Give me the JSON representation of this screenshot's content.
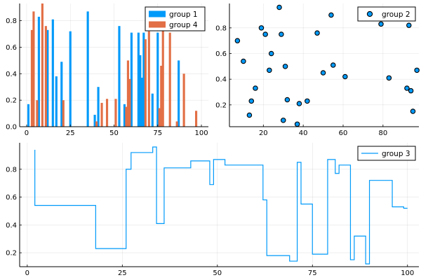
{
  "chart_data": [
    {
      "id": "panel1",
      "type": "bar",
      "title": "",
      "xlabel": "",
      "ylabel": "",
      "xlim": [
        -4,
        104
      ],
      "ylim": [
        0,
        0.93
      ],
      "xticks": [
        0,
        25,
        50,
        75,
        100
      ],
      "yticks": [
        0.0,
        0.2,
        0.4,
        0.6,
        0.8
      ],
      "ytick_labels": [
        "0.0",
        "0.2",
        "0.4",
        "0.6",
        "0.8"
      ],
      "grid": true,
      "legend_placement": "top-right",
      "series": [
        {
          "name": "group 1",
          "color": "#009AFA",
          "points": [
            {
              "x": 1,
              "y": 0.17
            },
            {
              "x": 7,
              "y": 0.83
            },
            {
              "x": 12,
              "y": 0.73
            },
            {
              "x": 15,
              "y": 0.81
            },
            {
              "x": 17,
              "y": 0.38
            },
            {
              "x": 20,
              "y": 0.49
            },
            {
              "x": 25,
              "y": 0.72
            },
            {
              "x": 35,
              "y": 0.87
            },
            {
              "x": 39,
              "y": 0.09
            },
            {
              "x": 41,
              "y": 0.3
            },
            {
              "x": 53,
              "y": 0.76
            },
            {
              "x": 56,
              "y": 0.17
            },
            {
              "x": 60,
              "y": 0.71
            },
            {
              "x": 64,
              "y": 0.71
            },
            {
              "x": 65,
              "y": 0.54
            },
            {
              "x": 66,
              "y": 0.37
            },
            {
              "x": 67,
              "y": 0.71
            },
            {
              "x": 72,
              "y": 0.25
            },
            {
              "x": 75,
              "y": 0.71
            },
            {
              "x": 87,
              "y": 0.5
            }
          ]
        },
        {
          "name": "group 4",
          "color": "#E26F46",
          "points": [
            {
              "x": 3,
              "y": 0.73
            },
            {
              "x": 4,
              "y": 0.87
            },
            {
              "x": 6,
              "y": 0.2
            },
            {
              "x": 9,
              "y": 0.93
            },
            {
              "x": 11,
              "y": 0.76
            },
            {
              "x": 21,
              "y": 0.2
            },
            {
              "x": 40,
              "y": 0.04
            },
            {
              "x": 43,
              "y": 0.18
            },
            {
              "x": 46,
              "y": 0.21
            },
            {
              "x": 51,
              "y": 0.21
            },
            {
              "x": 57,
              "y": 0.15
            },
            {
              "x": 58,
              "y": 0.5
            },
            {
              "x": 59,
              "y": 0.36
            },
            {
              "x": 68,
              "y": 0.66
            },
            {
              "x": 70,
              "y": 0.72
            },
            {
              "x": 76,
              "y": 0.14
            },
            {
              "x": 77,
              "y": 0.46
            },
            {
              "x": 78,
              "y": 0.75
            },
            {
              "x": 82,
              "y": 0.71
            },
            {
              "x": 86,
              "y": 0.04
            },
            {
              "x": 90,
              "y": 0.4
            },
            {
              "x": 97,
              "y": 0.12
            }
          ]
        }
      ]
    },
    {
      "id": "panel2",
      "type": "scatter",
      "title": "",
      "xlabel": "",
      "ylabel": "",
      "xlim": [
        3,
        98
      ],
      "ylim": [
        0.03,
        0.99
      ],
      "xticks": [
        20,
        40,
        60,
        80
      ],
      "yticks": [
        0.2,
        0.4,
        0.6,
        0.8
      ],
      "ytick_labels": [
        "0.2",
        "0.4",
        "0.6",
        "0.8"
      ],
      "grid": true,
      "legend_placement": "top-right",
      "series": [
        {
          "name": "group 2",
          "color": "#009AFA",
          "points": [
            {
              "x": 7,
              "y": 0.7
            },
            {
              "x": 10,
              "y": 0.54
            },
            {
              "x": 13,
              "y": 0.12
            },
            {
              "x": 14,
              "y": 0.23
            },
            {
              "x": 16,
              "y": 0.33
            },
            {
              "x": 19,
              "y": 0.8
            },
            {
              "x": 21,
              "y": 0.75
            },
            {
              "x": 23,
              "y": 0.47
            },
            {
              "x": 24,
              "y": 0.6
            },
            {
              "x": 28,
              "y": 0.96
            },
            {
              "x": 29,
              "y": 0.75
            },
            {
              "x": 30,
              "y": 0.08
            },
            {
              "x": 31,
              "y": 0.5
            },
            {
              "x": 32,
              "y": 0.24
            },
            {
              "x": 37,
              "y": 0.05
            },
            {
              "x": 38,
              "y": 0.21
            },
            {
              "x": 42,
              "y": 0.23
            },
            {
              "x": 47,
              "y": 0.76
            },
            {
              "x": 50,
              "y": 0.45
            },
            {
              "x": 54,
              "y": 0.9
            },
            {
              "x": 55,
              "y": 0.51
            },
            {
              "x": 61,
              "y": 0.42
            },
            {
              "x": 79,
              "y": 0.83
            },
            {
              "x": 83,
              "y": 0.41
            },
            {
              "x": 92,
              "y": 0.33
            },
            {
              "x": 93,
              "y": 0.82
            },
            {
              "x": 94,
              "y": 0.31
            },
            {
              "x": 95,
              "y": 0.15
            },
            {
              "x": 97,
              "y": 0.47
            }
          ]
        }
      ]
    },
    {
      "id": "panel3",
      "type": "line",
      "title": "",
      "xlabel": "",
      "ylabel": "",
      "xlim": [
        -2,
        103
      ],
      "ylim": [
        0.1,
        0.99
      ],
      "xticks": [
        0,
        25,
        50,
        75,
        100
      ],
      "yticks": [
        0.2,
        0.4,
        0.6,
        0.8
      ],
      "ytick_labels": [
        "0.2",
        "0.4",
        "0.6",
        "0.8"
      ],
      "grid": true,
      "legend_placement": "top-right",
      "series": [
        {
          "name": "group 3",
          "color": "#009AFA",
          "step": "post",
          "x": [
            2,
            2,
            18,
            26,
            26.7,
            27.3,
            33,
            34,
            36,
            43,
            48,
            49,
            52,
            62,
            63,
            69,
            71,
            72,
            75,
            79,
            81,
            82,
            85,
            86,
            89,
            90,
            96,
            99,
            100
          ],
          "y": [
            0.94,
            0.54,
            0.23,
            0.8,
            0.8,
            0.92,
            0.96,
            0.41,
            0.81,
            0.86,
            0.69,
            0.87,
            0.83,
            0.58,
            0.18,
            0.14,
            0.85,
            0.55,
            0.19,
            0.87,
            0.77,
            0.83,
            0.15,
            0.32,
            0.12,
            0.72,
            0.53,
            0.52,
            0.52
          ]
        }
      ]
    }
  ]
}
